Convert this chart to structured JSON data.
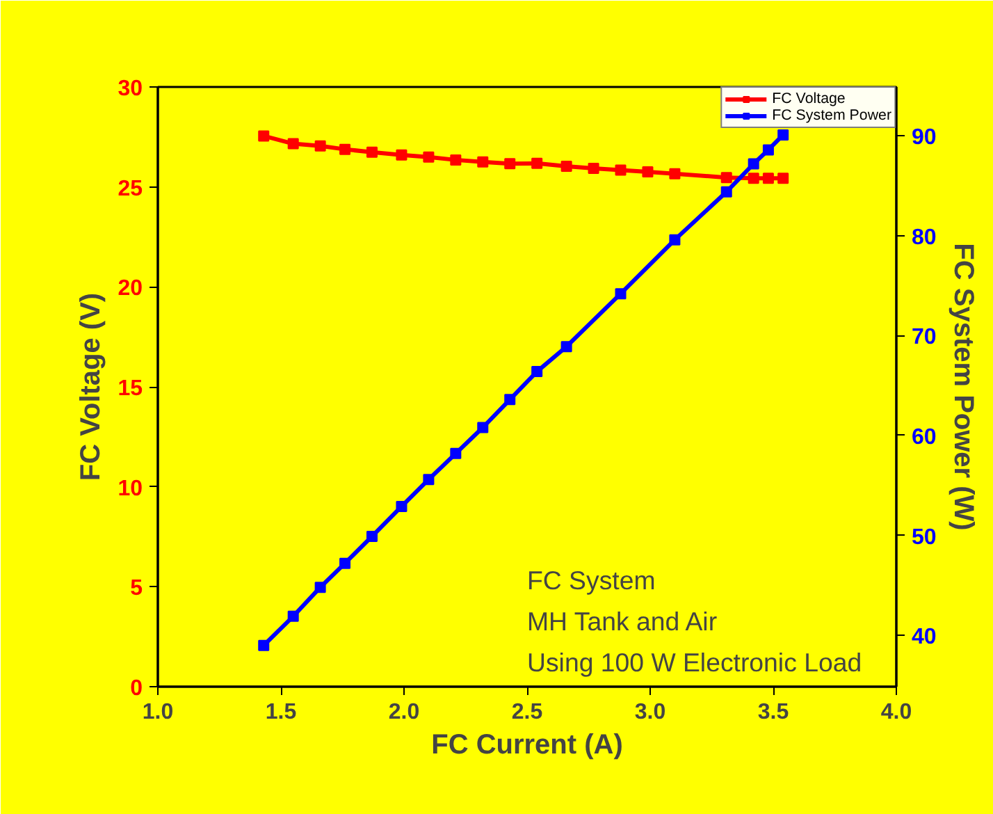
{
  "chart_data": {
    "type": "line",
    "xlabel": "FC Current (A)",
    "ylabel": "FC Voltage (V)",
    "y2label": "FC System Power (W)",
    "xlim": [
      1.0,
      4.0
    ],
    "xticks": [
      {
        "value": 1.0,
        "label": "1.0"
      },
      {
        "value": 1.5,
        "label": "1.5"
      },
      {
        "value": 2.0,
        "label": "2.0"
      },
      {
        "value": 2.5,
        "label": "2.5"
      },
      {
        "value": 3.0,
        "label": "3.0"
      },
      {
        "value": 3.5,
        "label": "3.5"
      },
      {
        "value": 4.0,
        "label": "4.0"
      }
    ],
    "ylim": [
      0,
      30
    ],
    "yticks": [
      0,
      5,
      10,
      15,
      20,
      25,
      30
    ],
    "y2lim": [
      34.85,
      94.9
    ],
    "y2ticks": [
      40,
      50,
      60,
      70,
      80,
      90
    ],
    "grid": false,
    "legend": "top right",
    "marker": "square",
    "line_style": "solid",
    "series": [
      {
        "name": "FC Voltage",
        "color": "#ff0000",
        "x": [
          1.43,
          1.55,
          1.66,
          1.76,
          1.87,
          1.99,
          2.1,
          2.21,
          2.32,
          2.43,
          2.54,
          2.66,
          2.77,
          2.88,
          2.99,
          3.1,
          3.31,
          3.42,
          3.48,
          3.54
        ],
        "values": [
          27.55,
          27.16,
          27.05,
          26.88,
          26.74,
          26.6,
          26.49,
          26.35,
          26.25,
          26.16,
          26.18,
          26.03,
          25.93,
          25.84,
          25.75,
          25.66,
          25.47,
          25.43,
          25.43,
          25.43
        ]
      },
      {
        "name": "FC System Power",
        "color": "#0000ff",
        "axis": "y2",
        "x": [
          1.43,
          1.55,
          1.66,
          1.76,
          1.87,
          1.99,
          2.1,
          2.21,
          2.32,
          2.43,
          2.54,
          2.66,
          2.88,
          3.1,
          3.31,
          3.42,
          3.48,
          3.54
        ],
        "values": [
          38.98,
          41.9,
          44.8,
          47.2,
          49.9,
          52.9,
          55.6,
          58.2,
          60.8,
          63.6,
          66.4,
          68.9,
          74.2,
          79.6,
          84.4,
          87.2,
          88.6,
          90.1
        ]
      }
    ],
    "annotations": [
      "FC System\nMH Tank and Air\nUsing 100 W Electronic Load"
    ]
  }
}
